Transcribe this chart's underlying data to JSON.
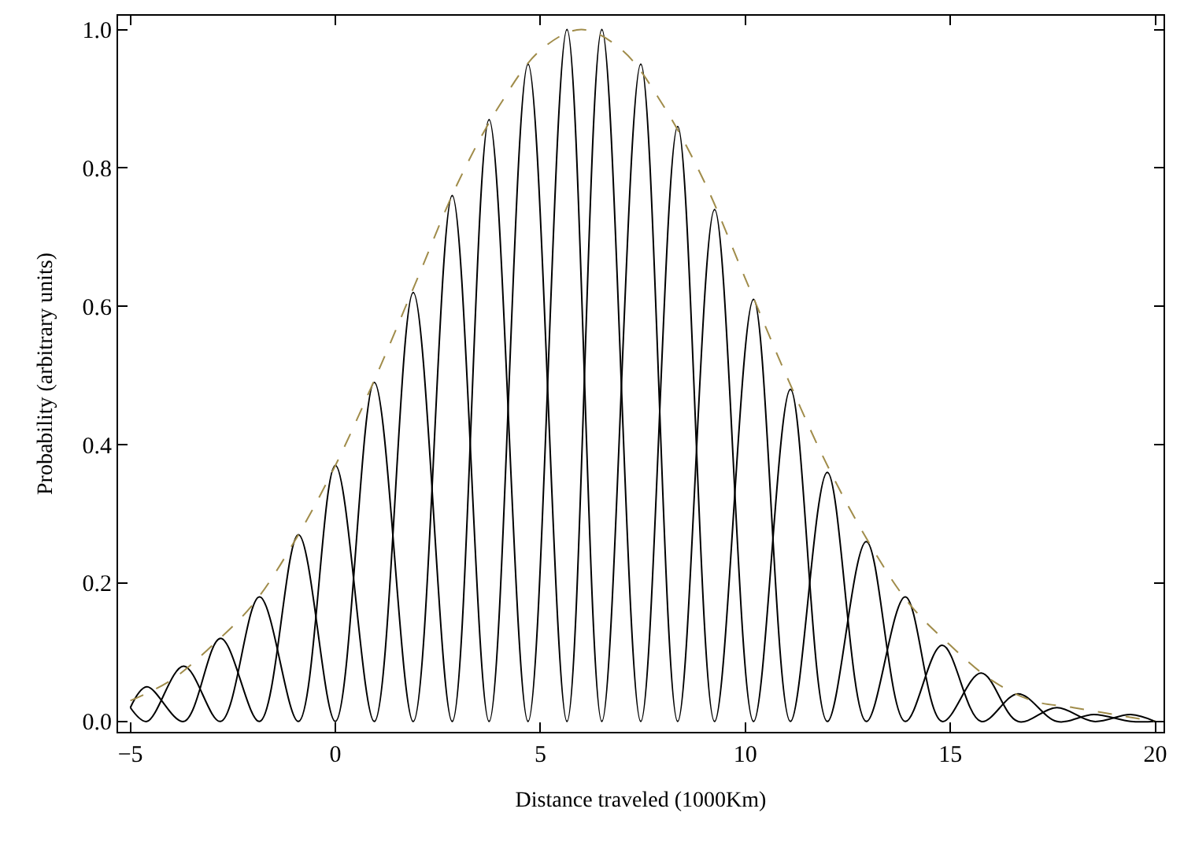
{
  "chart_data": {
    "type": "line",
    "xlabel": "Distance traveled (1000Km)",
    "ylabel": "Probability (arbitrary units)",
    "xlim": [
      -5.3,
      20.2
    ],
    "ylim": [
      -0.015,
      1.02
    ],
    "xticks": [
      -5,
      0,
      5,
      10,
      15,
      20
    ],
    "yticks": [
      {
        "value": 0,
        "label": "0.0"
      },
      0.2,
      0.4,
      0.6,
      0.8,
      {
        "value": 1,
        "label": "1.0"
      }
    ],
    "marker": "none",
    "series": [
      {
        "color": "#000000",
        "line_style": "solid",
        "x": [
          -5,
          -4.6,
          -3.7,
          -2.8,
          -1.85,
          -0.9,
          0,
          0.95,
          1.9,
          2.85,
          3.75,
          4.7,
          5.65,
          6.5,
          7.45,
          8.35,
          9.25,
          10.2,
          11.1,
          12.0,
          12.95,
          13.9,
          14.8,
          15.75,
          16.65,
          17.6,
          18.5,
          19.4,
          20
        ],
        "values": [
          0.02,
          0.05,
          0,
          0.12,
          0,
          0.27,
          0,
          0.49,
          0,
          0.76,
          0,
          0.95,
          0,
          1.0,
          0,
          0.86,
          0,
          0.61,
          0,
          0.36,
          0,
          0.18,
          0,
          0.07,
          0,
          0.02,
          0,
          0.01,
          0
        ]
      },
      {
        "color": "#000000",
        "line_style": "solid",
        "x": [
          -5,
          -4.6,
          -3.7,
          -2.8,
          -1.85,
          -0.9,
          0,
          0.95,
          1.9,
          2.85,
          3.75,
          4.7,
          5.65,
          6.5,
          7.45,
          8.35,
          9.25,
          10.2,
          11.1,
          12.0,
          12.95,
          13.9,
          14.8,
          15.75,
          16.65,
          17.6,
          18.5,
          19.4,
          20
        ],
        "values": [
          0.02,
          0,
          0.08,
          0,
          0.18,
          0,
          0.37,
          0,
          0.62,
          0,
          0.87,
          0,
          1.0,
          0,
          0.95,
          0,
          0.74,
          0,
          0.48,
          0,
          0.26,
          0,
          0.11,
          0,
          0.04,
          0,
          0.01,
          0,
          0
        ]
      },
      {
        "color": "#a08c4a",
        "line_style": "dashed",
        "x": [
          -5,
          -4,
          -3,
          -2,
          -1,
          0,
          1,
          2,
          3,
          4,
          5,
          6,
          7,
          8,
          9,
          10,
          11,
          12,
          13,
          14,
          15,
          16,
          17,
          18,
          19,
          20
        ],
        "values": [
          0.03,
          0.06,
          0.11,
          0.17,
          0.26,
          0.37,
          0.5,
          0.64,
          0.78,
          0.89,
          0.97,
          1.0,
          0.97,
          0.89,
          0.78,
          0.64,
          0.5,
          0.37,
          0.26,
          0.17,
          0.11,
          0.06,
          0.03,
          0.02,
          0.01,
          0
        ]
      }
    ]
  }
}
